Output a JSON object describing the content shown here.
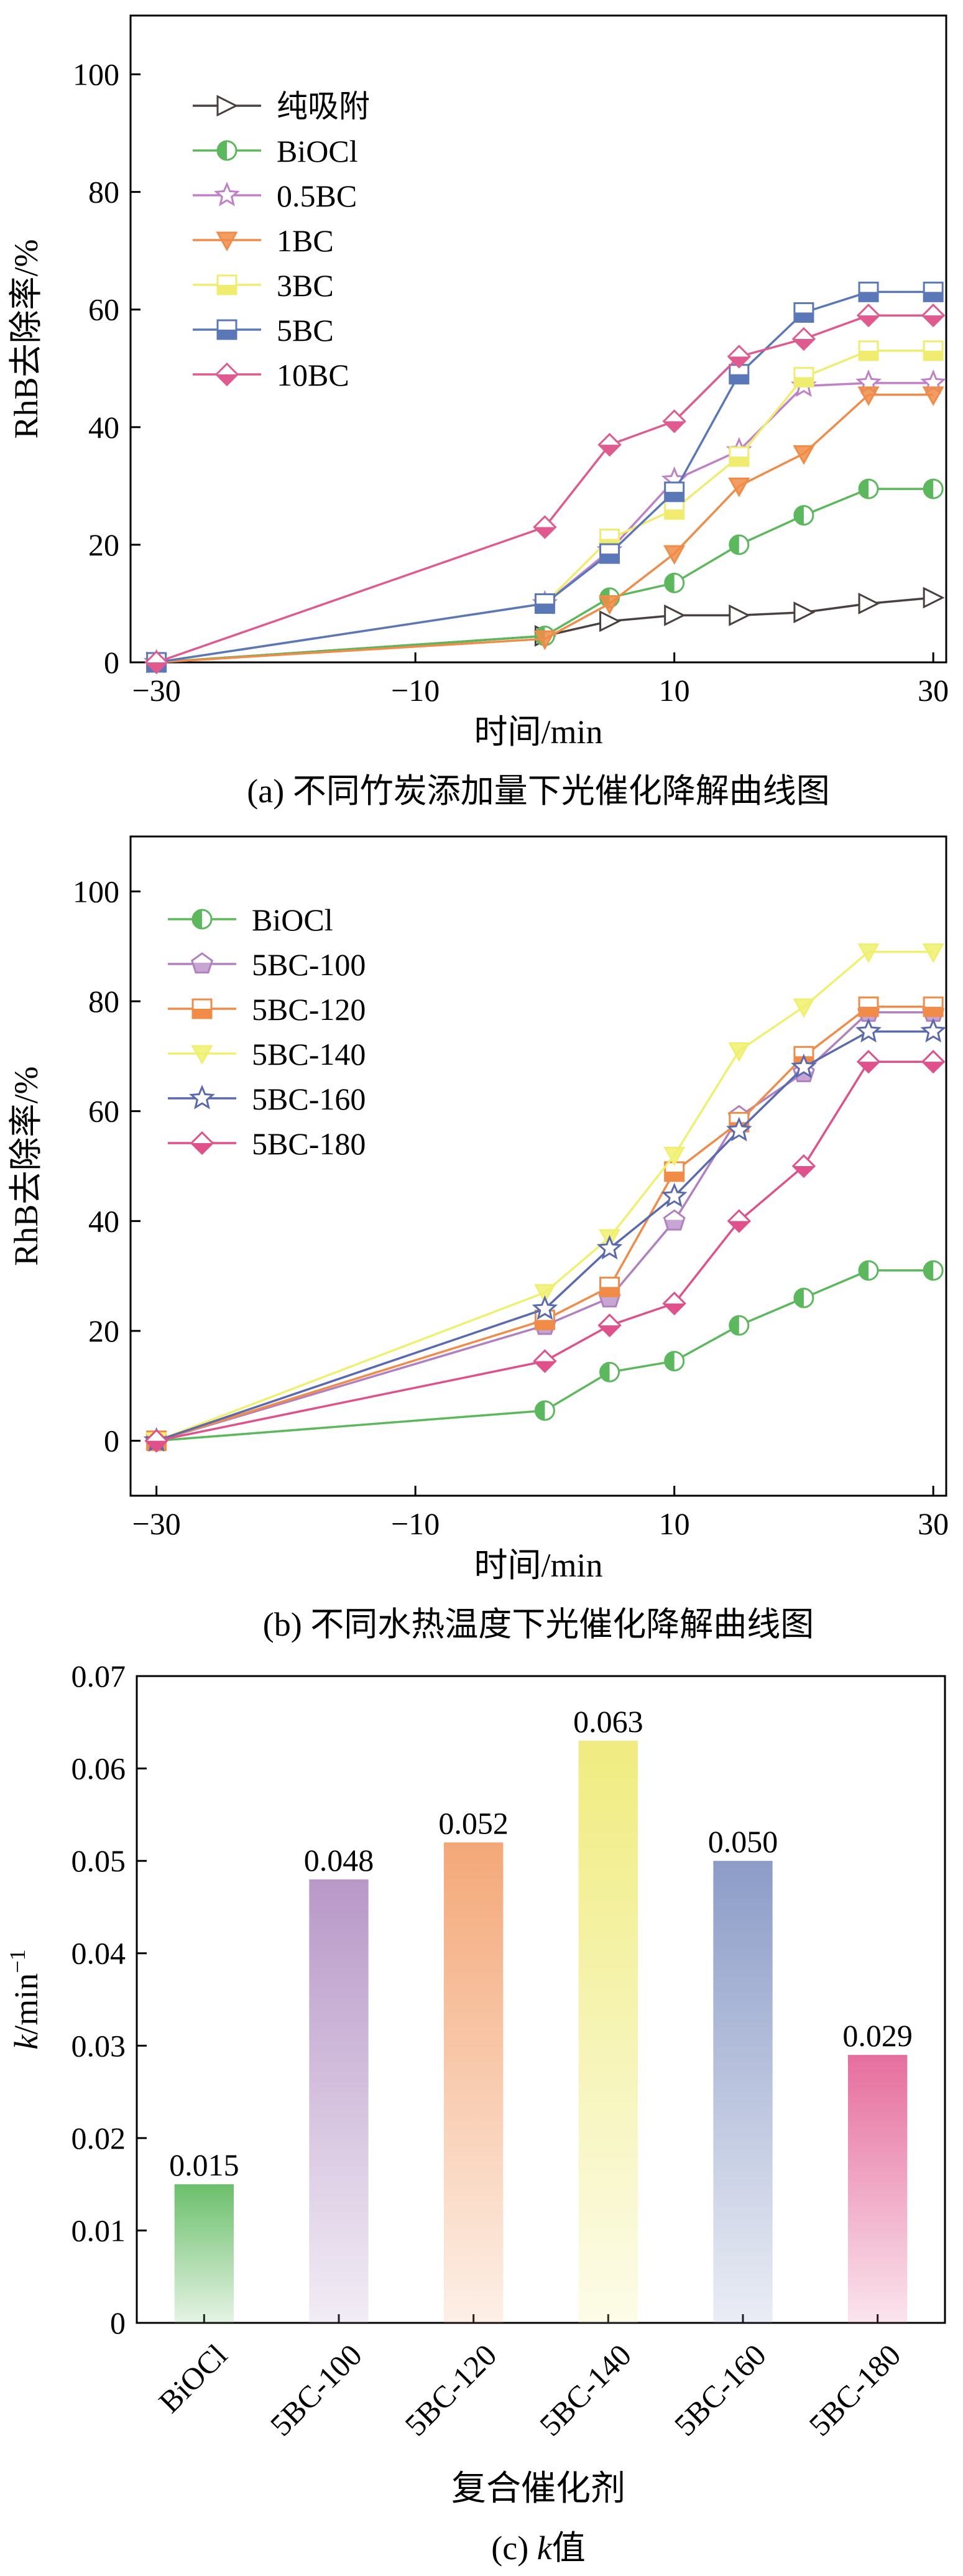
{
  "chart_data": [
    {
      "type": "line",
      "xlabel": "时间/min",
      "ylabel": "RhB去除率/%",
      "caption": "(a) 不同竹炭添加量下光催化降解曲线图",
      "xlim": [
        -32,
        31
      ],
      "ylim": [
        0,
        110
      ],
      "xticks": [
        -30,
        -10,
        10,
        30
      ],
      "yticks": [
        0,
        20,
        40,
        60,
        80,
        100
      ],
      "legend_position": "top-left",
      "series": [
        {
          "name": "纯吸附",
          "color": "#4a4040",
          "marker": "triangle-right",
          "x": [
            -30,
            0,
            5,
            10,
            15,
            20,
            25,
            30
          ],
          "y": [
            0,
            4.5,
            7,
            8,
            8,
            8.5,
            10,
            11
          ]
        },
        {
          "name": "BiOCl",
          "color": "#5cb85c",
          "marker": "circle-half",
          "x": [
            -30,
            0,
            5,
            10,
            15,
            20,
            25,
            30
          ],
          "y": [
            0,
            4.5,
            11,
            13.5,
            20,
            25,
            29.5,
            29.5
          ]
        },
        {
          "name": "0.5BC",
          "color": "#c080c8",
          "marker": "star",
          "x": [
            -30,
            0,
            5,
            10,
            15,
            20,
            25,
            30
          ],
          "y": [
            0,
            10,
            19,
            31,
            36,
            47,
            47.5,
            47.5
          ]
        },
        {
          "name": "1BC",
          "color": "#f08c48",
          "marker": "triangle-down",
          "x": [
            -30,
            0,
            5,
            10,
            15,
            20,
            25,
            30
          ],
          "y": [
            0,
            4,
            10,
            18.5,
            30,
            35.5,
            45.5,
            45.5
          ]
        },
        {
          "name": "3BC",
          "color": "#f0ec70",
          "marker": "square-half",
          "x": [
            -30,
            0,
            5,
            10,
            15,
            20,
            25,
            30
          ],
          "y": [
            0,
            10,
            21,
            26,
            35,
            48.5,
            53,
            53
          ]
        },
        {
          "name": "5BC",
          "color": "#5a78b8",
          "marker": "square-half",
          "x": [
            -30,
            0,
            5,
            10,
            15,
            20,
            25,
            30
          ],
          "y": [
            0,
            10,
            18.5,
            29,
            49,
            59.5,
            63,
            63
          ]
        },
        {
          "name": "10BC",
          "color": "#e05a90",
          "marker": "diamond",
          "x": [
            -30,
            0,
            5,
            10,
            15,
            20,
            25,
            30
          ],
          "y": [
            0,
            23,
            37,
            41,
            52,
            55,
            59,
            59
          ]
        }
      ]
    },
    {
      "type": "line",
      "xlabel": "时间/min",
      "ylabel": "RhB去除率/%",
      "caption": "(b) 不同水热温度下光催化降解曲线图",
      "xlim": [
        -32,
        31
      ],
      "ylim": [
        -10,
        110
      ],
      "xticks": [
        -30,
        -10,
        10,
        30
      ],
      "yticks": [
        0,
        20,
        40,
        60,
        80,
        100
      ],
      "legend_position": "top-left",
      "series": [
        {
          "name": "BiOCl",
          "color": "#5cb85c",
          "marker": "circle-half",
          "x": [
            -30,
            0,
            5,
            10,
            15,
            20,
            25,
            30
          ],
          "y": [
            0,
            5.5,
            12.5,
            14.5,
            21,
            26,
            31,
            31
          ]
        },
        {
          "name": "5BC-100",
          "color": "#b080c0",
          "marker": "pentagon",
          "x": [
            -30,
            0,
            5,
            10,
            15,
            20,
            25,
            30
          ],
          "y": [
            0,
            21,
            26,
            40,
            59,
            67,
            78,
            78
          ]
        },
        {
          "name": "5BC-120",
          "color": "#f08c48",
          "marker": "square-half",
          "x": [
            -30,
            0,
            5,
            10,
            15,
            20,
            25,
            30
          ],
          "y": [
            0,
            22,
            28,
            49,
            58,
            70,
            79,
            79
          ]
        },
        {
          "name": "5BC-140",
          "color": "#f0f070",
          "marker": "triangle-down",
          "x": [
            -30,
            0,
            5,
            10,
            15,
            20,
            25,
            30
          ],
          "y": [
            0,
            27,
            37,
            52,
            71,
            79,
            89,
            89
          ]
        },
        {
          "name": "5BC-160",
          "color": "#5a6ab0",
          "marker": "star",
          "x": [
            -30,
            0,
            5,
            10,
            15,
            20,
            25,
            30
          ],
          "y": [
            0,
            24,
            35,
            44.5,
            56.5,
            68,
            74.5,
            74.5
          ]
        },
        {
          "name": "5BC-180",
          "color": "#e0508a",
          "marker": "diamond",
          "x": [
            -30,
            0,
            5,
            10,
            15,
            20,
            25,
            30
          ],
          "y": [
            0,
            14.5,
            21,
            25,
            40,
            50,
            69,
            69
          ]
        }
      ]
    },
    {
      "type": "bar",
      "xlabel": "复合催化剂",
      "ylabel_main": "k",
      "ylabel_unit": "/min",
      "ylabel_sup": "−1",
      "caption_prefix": "(c) ",
      "caption_k": "k",
      "caption_suffix": "值",
      "ylim": [
        0,
        0.07
      ],
      "yticks": [
        "0",
        "0.01",
        "0.02",
        "0.03",
        "0.04",
        "0.05",
        "0.06",
        "0.07"
      ],
      "categories": [
        "BiOCl",
        "5BC-100",
        "5BC-120",
        "5BC-140",
        "5BC-160",
        "5BC-180"
      ],
      "values": [
        0.015,
        0.048,
        0.052,
        0.063,
        0.05,
        0.029
      ],
      "value_labels": [
        "0.015",
        "0.048",
        "0.052",
        "0.063",
        "0.050",
        "0.029"
      ],
      "colors": [
        "#6cbf6c",
        "#b898c8",
        "#f4a878",
        "#f0ec80",
        "#8c9cc8",
        "#e66e9e"
      ]
    }
  ]
}
